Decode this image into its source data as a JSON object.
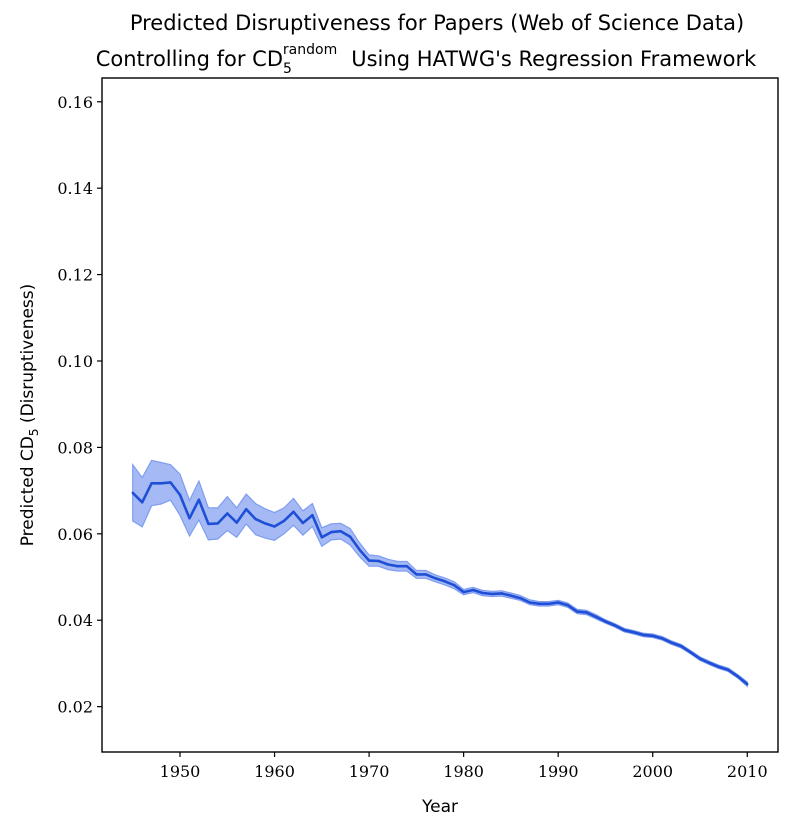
{
  "chart_data": {
    "type": "line",
    "title_line1": "Predicted Disruptiveness for Papers (Web of Science Data)",
    "title_line2_pre": "Controlling for CD",
    "title_line2_sub": "5",
    "title_line2_sup": "random",
    "title_line2_post": "Using HATWG's Regression Framework",
    "xlabel": "Year",
    "ylabel_pre": "Predicted CD",
    "ylabel_sub": "5",
    "ylabel_post": " (Disruptiveness)",
    "xlim": [
      1941.75,
      2013.25
    ],
    "ylim": [
      0.0095,
      0.1655
    ],
    "xticks": [
      1950,
      1960,
      1970,
      1980,
      1990,
      2000,
      2010
    ],
    "yticks": [
      "0.02",
      "0.04",
      "0.06",
      "0.08",
      "0.10",
      "0.12",
      "0.14",
      "0.16"
    ],
    "colors": {
      "line": "#1f4fd6",
      "band": "#7f9cf0"
    },
    "series": [
      {
        "x": [
          1945,
          1946,
          1947,
          1948,
          1949,
          1950,
          1951,
          1952,
          1953,
          1954,
          1955,
          1956,
          1957,
          1958,
          1959,
          1960,
          1961,
          1962,
          1963,
          1964,
          1965,
          1966,
          1967,
          1968,
          1969,
          1970,
          1971,
          1972,
          1973,
          1974,
          1975,
          1976,
          1977,
          1978,
          1979,
          1980,
          1981,
          1982,
          1983,
          1984,
          1985,
          1986,
          1987,
          1988,
          1989,
          1990,
          1991,
          1992,
          1993,
          1994,
          1995,
          1996,
          1997,
          1998,
          1999,
          2000,
          2001,
          2002,
          2003,
          2004,
          2005,
          2006,
          2007,
          2008,
          2009,
          2010
        ],
        "y": [
          0.0695,
          0.0673,
          0.0717,
          0.0717,
          0.0719,
          0.069,
          0.0636,
          0.0679,
          0.0623,
          0.0624,
          0.0647,
          0.0626,
          0.0657,
          0.0634,
          0.0624,
          0.0617,
          0.063,
          0.0651,
          0.0625,
          0.0643,
          0.0592,
          0.0604,
          0.0606,
          0.0593,
          0.0563,
          0.0538,
          0.0537,
          0.0529,
          0.0525,
          0.0525,
          0.0506,
          0.0506,
          0.0497,
          0.049,
          0.0481,
          0.0465,
          0.047,
          0.0463,
          0.0461,
          0.0462,
          0.0457,
          0.0451,
          0.0441,
          0.0438,
          0.0438,
          0.0441,
          0.0435,
          0.042,
          0.0418,
          0.0408,
          0.0397,
          0.0388,
          0.0377,
          0.0372,
          0.0366,
          0.0364,
          0.0358,
          0.0348,
          0.034,
          0.0326,
          0.0311,
          0.0301,
          0.0292,
          0.0285,
          0.027,
          0.0252
        ],
        "lower": [
          0.063,
          0.0616,
          0.0665,
          0.0669,
          0.0678,
          0.0643,
          0.0595,
          0.0632,
          0.0586,
          0.0588,
          0.0608,
          0.0592,
          0.0623,
          0.0598,
          0.059,
          0.0585,
          0.06,
          0.062,
          0.0597,
          0.0617,
          0.0571,
          0.0586,
          0.0588,
          0.0574,
          0.0547,
          0.0525,
          0.0525,
          0.0517,
          0.0514,
          0.0514,
          0.0497,
          0.0497,
          0.0489,
          0.0482,
          0.0473,
          0.0459,
          0.0464,
          0.0457,
          0.0455,
          0.0456,
          0.0451,
          0.0446,
          0.0436,
          0.0433,
          0.0433,
          0.0436,
          0.043,
          0.0415,
          0.0413,
          0.0403,
          0.0393,
          0.0384,
          0.0373,
          0.0368,
          0.0362,
          0.036,
          0.0354,
          0.0344,
          0.0336,
          0.0322,
          0.0307,
          0.0297,
          0.0288,
          0.0281,
          0.0266,
          0.0247
        ],
        "upper": [
          0.076,
          0.073,
          0.077,
          0.0765,
          0.076,
          0.0738,
          0.0677,
          0.0722,
          0.066,
          0.066,
          0.0686,
          0.066,
          0.0692,
          0.067,
          0.0658,
          0.0649,
          0.066,
          0.0682,
          0.0653,
          0.067,
          0.0614,
          0.0623,
          0.0624,
          0.0612,
          0.0579,
          0.0551,
          0.0549,
          0.0541,
          0.0536,
          0.0536,
          0.0515,
          0.0515,
          0.0505,
          0.0498,
          0.0489,
          0.0471,
          0.0476,
          0.0469,
          0.0467,
          0.0468,
          0.0463,
          0.0457,
          0.0447,
          0.0443,
          0.0443,
          0.0446,
          0.044,
          0.0425,
          0.0423,
          0.0413,
          0.0401,
          0.0392,
          0.0381,
          0.0376,
          0.037,
          0.0368,
          0.0362,
          0.0352,
          0.0344,
          0.033,
          0.0315,
          0.0305,
          0.0296,
          0.0289,
          0.0274,
          0.0257
        ]
      }
    ]
  }
}
